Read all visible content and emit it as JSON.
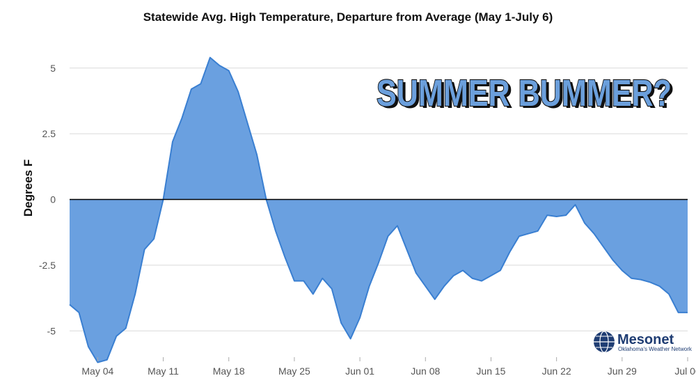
{
  "chart_data": {
    "type": "area",
    "title": "Statewide Avg. High Temperature, Departure from Average (May 1-July 6)",
    "xlabel": "",
    "ylabel": "Degrees F",
    "ylim": [
      -6,
      6
    ],
    "yticks": [
      5,
      2.5,
      0,
      -2.5,
      -5
    ],
    "ytick_labels": [
      "5",
      "2.5",
      "0",
      "-2.5",
      "-5"
    ],
    "xticks": [
      {
        "day": 3,
        "label": "May 04"
      },
      {
        "day": 10,
        "label": "May 11"
      },
      {
        "day": 17,
        "label": "May 18"
      },
      {
        "day": 24,
        "label": "May 25"
      },
      {
        "day": 31,
        "label": "Jun 01"
      },
      {
        "day": 38,
        "label": "Jun 08"
      },
      {
        "day": 45,
        "label": "Jun 15"
      },
      {
        "day": 52,
        "label": "Jun 22"
      },
      {
        "day": 59,
        "label": "Jun 29"
      },
      {
        "day": 66,
        "label": "Jul 06"
      }
    ],
    "x_start": "May 01",
    "x_end": "Jul 06",
    "grid": true,
    "annotation": "SUMMER BUMMER?",
    "values": [
      -4.0,
      -4.3,
      -5.6,
      -6.2,
      -6.1,
      -5.2,
      -4.9,
      -3.6,
      -1.9,
      -1.5,
      0.0,
      2.2,
      3.1,
      4.2,
      4.4,
      5.4,
      5.1,
      4.9,
      4.1,
      2.9,
      1.7,
      0.0,
      -1.2,
      -2.2,
      -3.1,
      -3.1,
      -3.6,
      -3.0,
      -3.4,
      -4.7,
      -5.3,
      -4.5,
      -3.3,
      -2.4,
      -1.4,
      -1.0,
      -1.9,
      -2.8,
      -3.3,
      -3.8,
      -3.3,
      -2.9,
      -2.7,
      -3.0,
      -3.1,
      -2.9,
      -2.7,
      -2.0,
      -1.4,
      -1.3,
      -1.2,
      -0.6,
      -0.65,
      -0.6,
      -0.2,
      -0.9,
      -1.3,
      -1.8,
      -2.3,
      -2.7,
      -3.0,
      -3.05,
      -3.15,
      -3.3,
      -3.6,
      -4.3,
      -4.3
    ],
    "colors": {
      "fill": "#6aa0e0",
      "line": "#3a7fd1",
      "zero_line": "#000000"
    }
  },
  "logo": {
    "name": "Mesonet",
    "tagline": "Oklahoma's Weather Network"
  }
}
